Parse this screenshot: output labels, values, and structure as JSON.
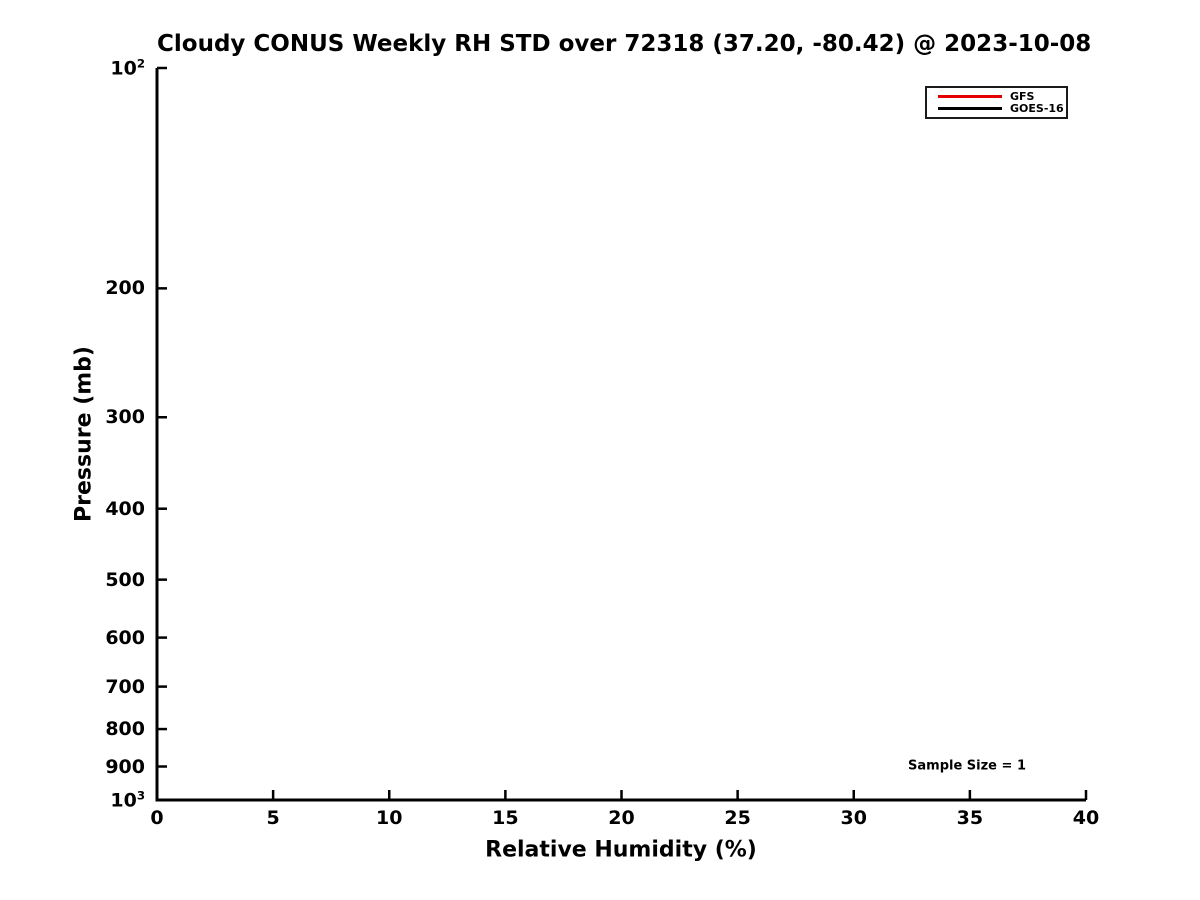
{
  "chart_data": {
    "type": "line",
    "title": "Cloudy CONUS Weekly RH STD over 72318 (37.20, -80.42) @ 2023-10-08",
    "xlabel": "Relative Humidity (%)",
    "ylabel": "Pressure (mb)",
    "x_axis": {
      "min": 0,
      "max": 40,
      "ticks": [
        0,
        5,
        10,
        15,
        20,
        25,
        30,
        35,
        40
      ],
      "tick_labels": [
        "0",
        "5",
        "10",
        "15",
        "20",
        "25",
        "30",
        "35",
        "40"
      ]
    },
    "y_axis": {
      "scale": "log10",
      "min": 100,
      "max": 1000,
      "inverted": true,
      "ticks": [
        100,
        200,
        300,
        400,
        500,
        600,
        700,
        800,
        900,
        1000
      ],
      "tick_labels": [
        "10^2",
        "200",
        "300",
        "400",
        "500",
        "600",
        "700",
        "800",
        "900",
        "10^3"
      ]
    },
    "grid": false,
    "legend": {
      "position": "upper-right",
      "entries": [
        {
          "label": "GFS",
          "color": "#e40000"
        },
        {
          "label": "GOES-16",
          "color": "#000000"
        }
      ]
    },
    "series": [
      {
        "name": "GFS",
        "color": "#e40000",
        "points": []
      },
      {
        "name": "GOES-16",
        "color": "#000000",
        "points": []
      }
    ],
    "annotation": {
      "text": "Sample Size = 1"
    },
    "axis_color": "#000000",
    "text_color": "#000000",
    "background": "#ffffff"
  }
}
